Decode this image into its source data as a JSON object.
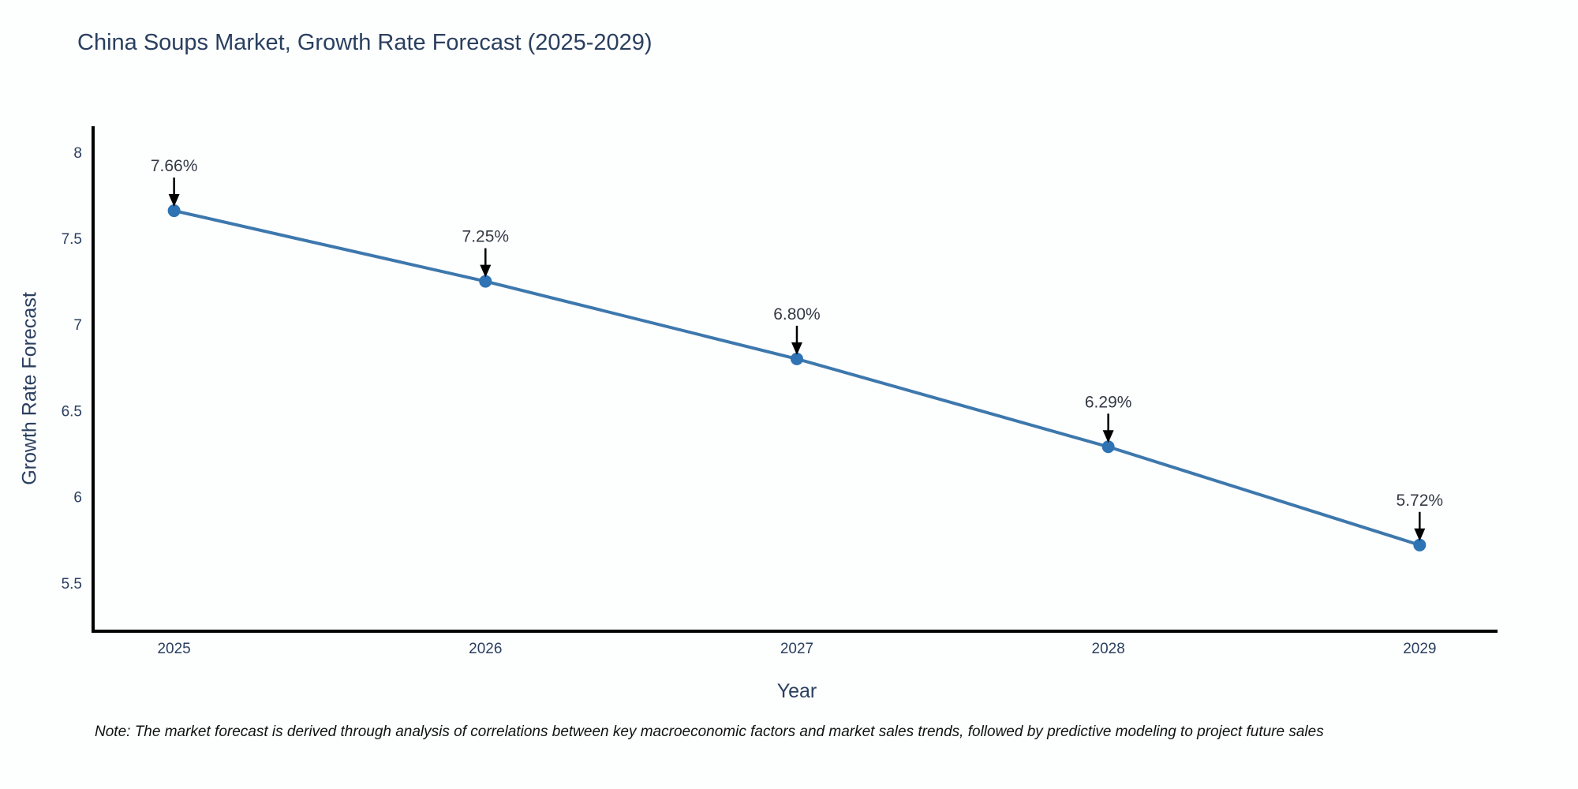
{
  "title": "China Soups Market, Growth Rate Forecast (2025-2029)",
  "note": "Note: The market forecast is derived through analysis of correlations between key macroeconomic factors and market sales trends, followed by predictive modeling to project future sales",
  "chart_data": {
    "type": "line",
    "title": "China Soups Market, Growth Rate Forecast (2025-2029)",
    "xlabel": "Year",
    "ylabel": "Growth Rate Forecast",
    "x": [
      2025,
      2026,
      2027,
      2028,
      2029
    ],
    "series": [
      {
        "name": "Growth Rate Forecast",
        "values": [
          7.66,
          7.25,
          6.8,
          6.29,
          5.72
        ]
      }
    ],
    "point_labels": [
      "7.66%",
      "7.25%",
      "6.80%",
      "6.29%",
      "5.72%"
    ],
    "xticks": [
      "2025",
      "2026",
      "2027",
      "2028",
      "2029"
    ],
    "yticks": [
      5.5,
      6,
      6.5,
      7,
      7.5,
      8
    ],
    "ytick_labels": [
      "5.5",
      "6",
      "6.5",
      "7",
      "7.5",
      "8"
    ],
    "xlim": [
      2024.74,
      2029.25
    ],
    "ylim": [
      5.22,
      8.15
    ],
    "grid": false,
    "legend": "none",
    "colors": {
      "line": "#3d78ad",
      "marker": "#2e73b3",
      "axis": "#000000",
      "tick_text": "#2a3f5f",
      "annotation_text": "#333a45",
      "annotation_arrow": "#000000",
      "background": "#fdfefe"
    }
  }
}
